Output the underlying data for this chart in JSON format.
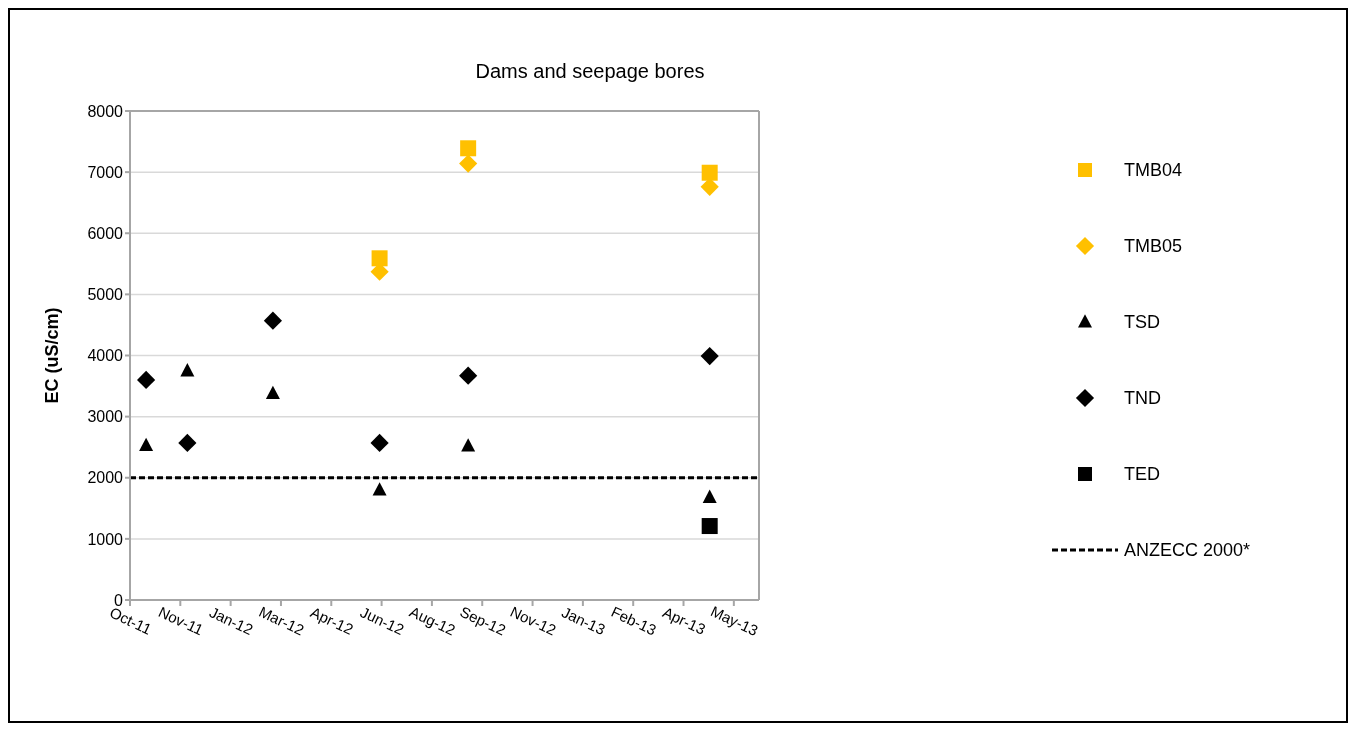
{
  "chart_data": {
    "type": "scatter",
    "title": "Dams and seepage bores",
    "ylabel": "EC (uS/cm)",
    "x": [
      "2011-10-25",
      "2011-12-05",
      "2012-02-28",
      "2012-06-13",
      "2012-09-09",
      "2013-05-07"
    ],
    "series": [
      {
        "name": "TMB04",
        "color": "#ffc000",
        "marker": "square",
        "values": [
          null,
          null,
          null,
          5590,
          7390,
          6990
        ]
      },
      {
        "name": "TMB05",
        "color": "#ffc000",
        "marker": "diamond",
        "values": [
          null,
          null,
          null,
          5370,
          7140,
          6760
        ]
      },
      {
        "name": "TSD",
        "color": "#000000",
        "marker": "triangle",
        "values": [
          2530,
          3750,
          3380,
          1800,
          2520,
          1680
        ]
      },
      {
        "name": "TND",
        "color": "#000000",
        "marker": "diamond",
        "values": [
          3600,
          2570,
          4570,
          2570,
          3670,
          3990
        ]
      },
      {
        "name": "TED",
        "color": "#000000",
        "marker": "square",
        "values": [
          null,
          null,
          null,
          null,
          null,
          1210
        ]
      }
    ],
    "ref_lines": [
      {
        "axis": "y",
        "value": 2000,
        "label": "ANZECC 2000*",
        "color": "#000000",
        "line_style": "dashed"
      }
    ],
    "xlim": [
      "2011-10-09",
      "2013-06-25"
    ],
    "xticks": [
      {
        "value": "2011-10-09",
        "label": "Oct-11"
      },
      {
        "value": "2011-11-28",
        "label": "Nov-11"
      },
      {
        "value": "2012-01-17",
        "label": "Jan-12"
      },
      {
        "value": "2012-03-07",
        "label": "Mar-12"
      },
      {
        "value": "2012-04-26",
        "label": "Apr-12"
      },
      {
        "value": "2012-06-15",
        "label": "Jun-12"
      },
      {
        "value": "2012-08-04",
        "label": "Aug-12"
      },
      {
        "value": "2012-09-23",
        "label": "Sep-12"
      },
      {
        "value": "2012-11-12",
        "label": "Nov-12"
      },
      {
        "value": "2013-01-01",
        "label": "Jan-13"
      },
      {
        "value": "2013-02-20",
        "label": "Feb-13"
      },
      {
        "value": "2013-04-11",
        "label": "Apr-13"
      },
      {
        "value": "2013-05-31",
        "label": "May-13"
      }
    ],
    "ylim": [
      0,
      8000
    ],
    "yticks": [
      0,
      1000,
      2000,
      3000,
      4000,
      5000,
      6000,
      7000,
      8000
    ],
    "grid": "y",
    "legend": "right"
  }
}
